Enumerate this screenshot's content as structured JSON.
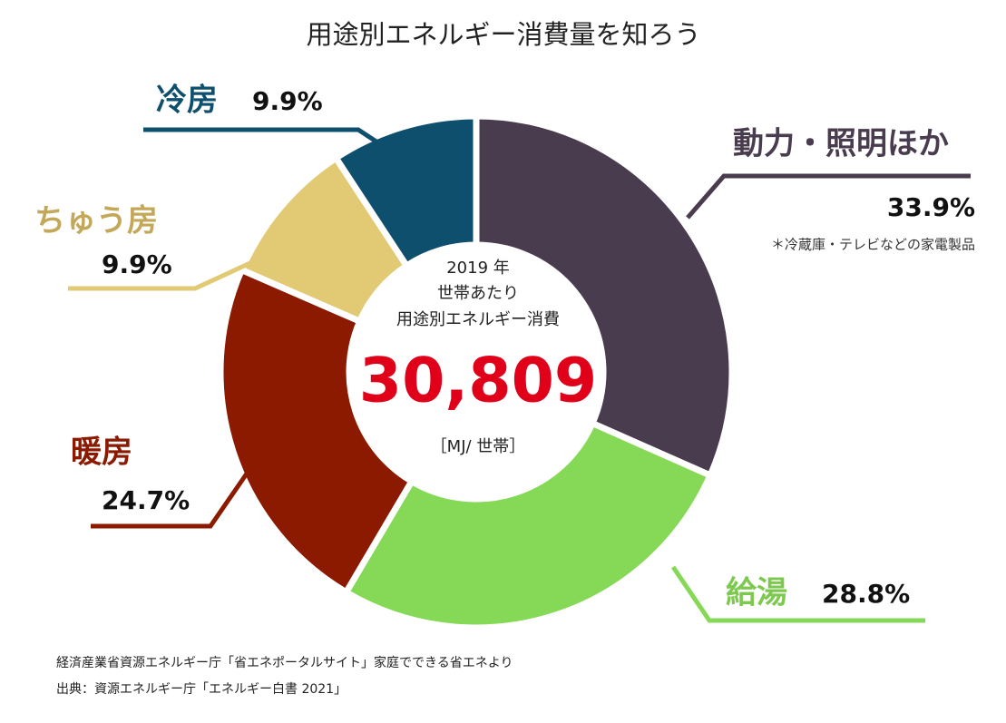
{
  "chart_data": {
    "type": "donut",
    "title": "用途別エネルギー消費量を知ろう",
    "categories": [
      "動力・照明ほか",
      "給湯",
      "暖房",
      "ちゅう房",
      "冷房"
    ],
    "values": [
      33.9,
      28.8,
      24.7,
      9.9,
      9.9
    ],
    "value_labels": [
      "33.9%",
      "28.8%",
      "24.7%",
      "9.9%",
      "9.9%"
    ],
    "colors": [
      "#4a3c4f",
      "#86d957",
      "#8b1a00",
      "#e2c973",
      "#0e4f6e"
    ],
    "note": "＊冷蔵庫・テレビなどの家電製品",
    "center": {
      "line1": "2019 年",
      "line2": "世帯あたり",
      "line3": "用途別エネルギー消費",
      "total": "30,809",
      "unit": "［MJ/ 世帯］"
    },
    "sources": [
      "経済産業省資源エネルギー庁「省エネポータルサイト」家庭でできる省エネより",
      "出典：資源エネルギー庁「エネルギー白書 2021」"
    ]
  }
}
